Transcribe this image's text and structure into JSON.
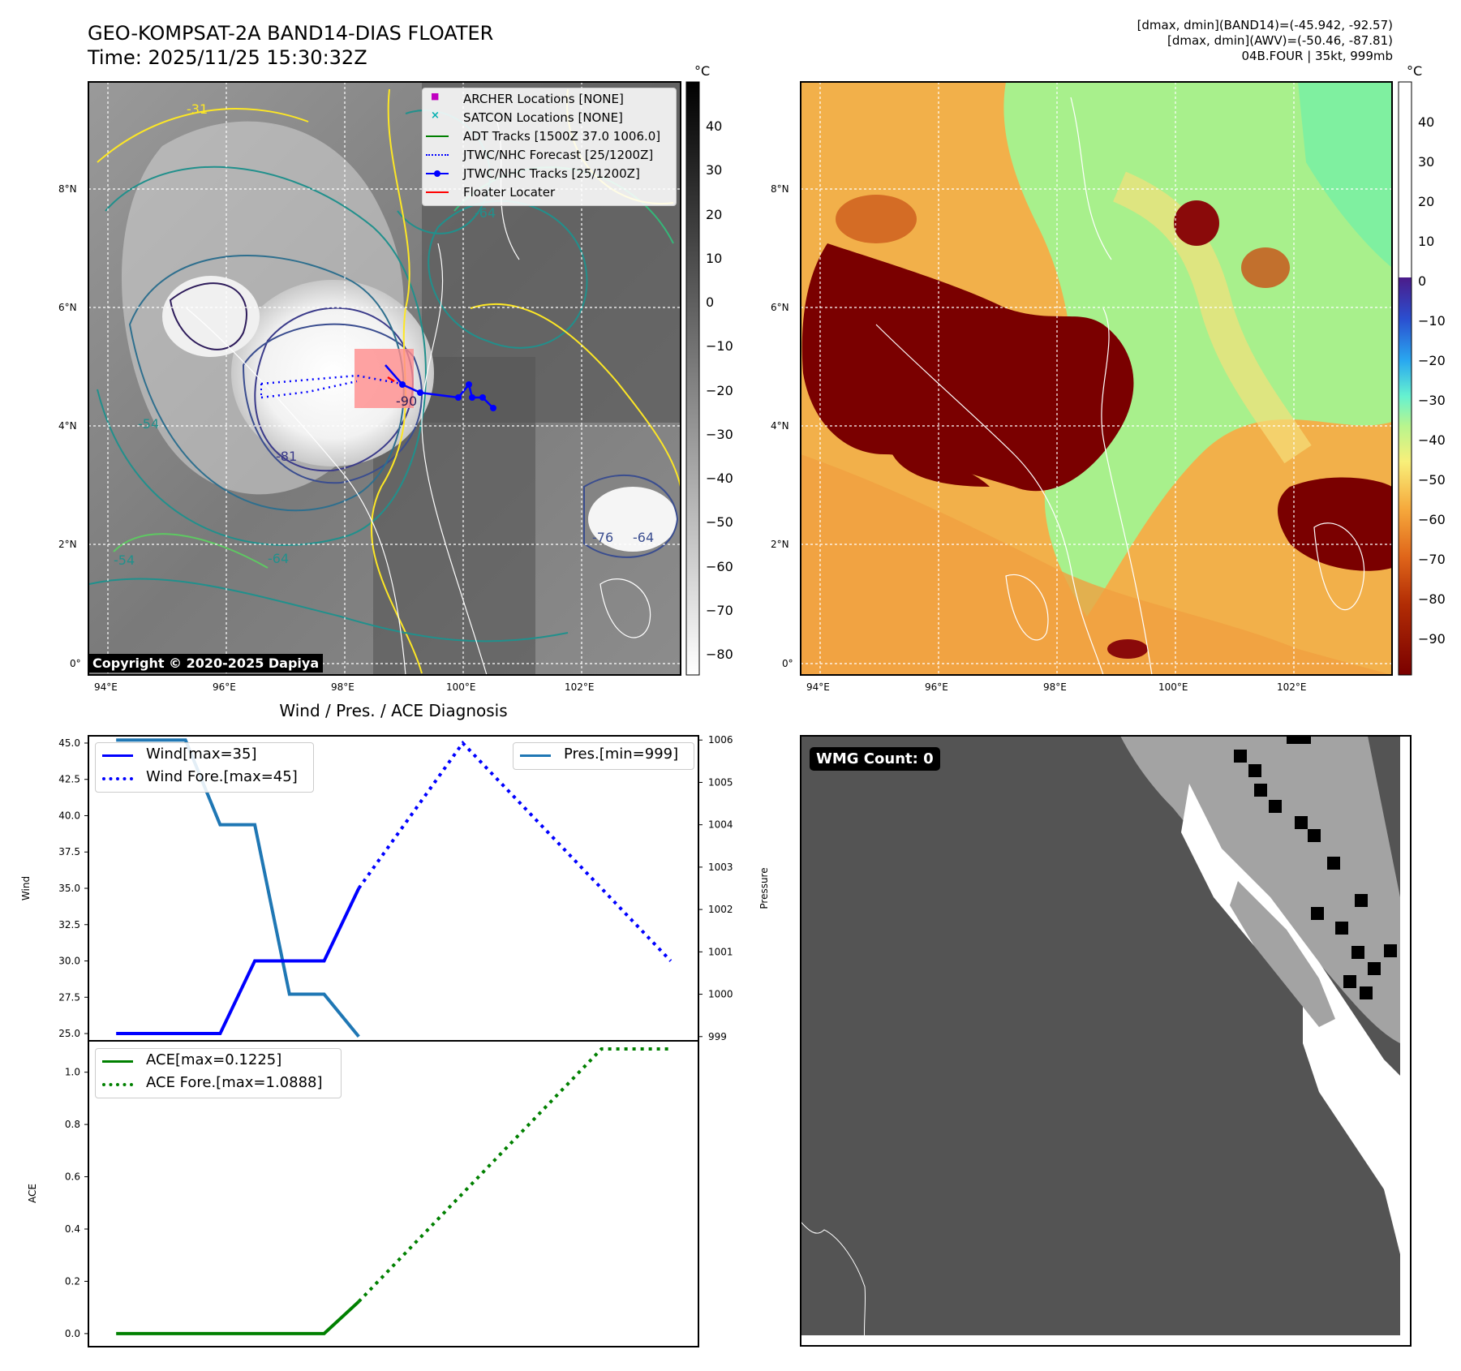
{
  "header": {
    "title_line1": "GEO-KOMPSAT-2A BAND14-DIAS FLOATER",
    "title_line2": "Time: 2025/11/25 15:30:32Z",
    "info_line1": "[dmax, dmin](BAND14)=(-45.942, -92.57)",
    "info_line2": "[dmax, dmin](AWV)=(-50.46, -87.81)",
    "info_line3": "04B.FOUR | 35kt, 999mb"
  },
  "map_ir": {
    "lon_labels": [
      "94°E",
      "96°E",
      "98°E",
      "100°E",
      "102°E"
    ],
    "lat_labels": [
      "8°N",
      "6°N",
      "4°N",
      "2°N",
      "0°"
    ],
    "contour_labels": [
      "-31",
      "-54",
      "-64",
      "-76",
      "-81",
      "-90"
    ],
    "copyright": "Copyright © 2020-2025 Dapiya",
    "colorbar_unit": "°C",
    "colorbar_ticks": [
      "40",
      "30",
      "20",
      "10",
      "0",
      "−10",
      "−20",
      "−30",
      "−40",
      "−50",
      "−60",
      "−70",
      "−80"
    ],
    "legend": [
      {
        "label": "ARCHER Locations [NONE]",
        "color": "#c000c0",
        "marker": "square"
      },
      {
        "label": "SATCON Locations [NONE]",
        "color": "#00b0b0",
        "marker": "x"
      },
      {
        "label": "ADT Tracks [1500Z 37.0 1006.0]",
        "color": "#007f00",
        "marker": "line"
      },
      {
        "label": "JTWC/NHC Forecast [25/1200Z]",
        "color": "#0000ff",
        "marker": "dotted"
      },
      {
        "label": "JTWC/NHC Tracks [25/1200Z]",
        "color": "#0000ff",
        "marker": "line-dot"
      },
      {
        "label": "Floater Locater",
        "color": "#ff0000",
        "marker": "line"
      }
    ]
  },
  "map_wv": {
    "lon_labels": [
      "94°E",
      "96°E",
      "98°E",
      "100°E",
      "102°E"
    ],
    "lat_labels": [
      "8°N",
      "6°N",
      "4°N",
      "2°N",
      "0°"
    ],
    "colorbar_unit": "°C",
    "colorbar_ticks": [
      "40",
      "30",
      "20",
      "10",
      "0",
      "−10",
      "−20",
      "−30",
      "−40",
      "−50",
      "−60",
      "−70",
      "−80",
      "−90"
    ]
  },
  "diagnosis": {
    "title": "Wind / Pres. / ACE Diagnosis",
    "wind_ylabel": "Wind",
    "pres_ylabel": "Pressure",
    "ace_ylabel": "ACE",
    "wind_ticks": [
      "45.0",
      "42.5",
      "40.0",
      "37.5",
      "35.0",
      "32.5",
      "30.0",
      "27.5",
      "25.0"
    ],
    "pres_ticks": [
      "1006",
      "1005",
      "1004",
      "1003",
      "1002",
      "1001",
      "1000",
      "999"
    ],
    "ace_ticks": [
      "1.0",
      "0.8",
      "0.6",
      "0.4",
      "0.2",
      "0.0"
    ],
    "legend_wind": "Wind[max=35]",
    "legend_wind_fore": "Wind Fore.[max=45]",
    "legend_pres": "Pres.[min=999]",
    "legend_ace": "ACE[max=0.1225]",
    "legend_ace_fore": "ACE Fore.[max=1.0888]"
  },
  "wmg": {
    "badge": "WMG Count: 0"
  },
  "chart_data": [
    {
      "type": "line",
      "title": "Wind / Pres. / ACE Diagnosis",
      "ylabel": "Wind",
      "ylim": [
        24.5,
        45.5
      ],
      "x": [
        0,
        1,
        2,
        3,
        4,
        5,
        6,
        7,
        8,
        9,
        10,
        11,
        12,
        13,
        14,
        15,
        16
      ],
      "series": [
        {
          "name": "Wind[max=35]",
          "style": "solid",
          "color": "#0000ff",
          "x": [
            0,
            1,
            2,
            3,
            4,
            5,
            6,
            7
          ],
          "values": [
            25,
            25,
            25,
            25,
            30,
            30,
            30,
            35
          ]
        },
        {
          "name": "Wind Fore.[max=45]",
          "style": "dotted",
          "color": "#0000ff",
          "x": [
            7,
            10,
            16
          ],
          "values": [
            35,
            45,
            30
          ]
        },
        {
          "name": "Pres.[min=999]",
          "style": "solid",
          "color": "#1f77b4",
          "axis": "right",
          "x": [
            0,
            1,
            2,
            3,
            4,
            5,
            6,
            7
          ],
          "values": [
            1006,
            1006,
            1006,
            1004,
            1004,
            1000,
            1000,
            999
          ]
        }
      ],
      "ylim_right": [
        998.9,
        1006.1
      ]
    },
    {
      "type": "line",
      "ylabel": "ACE",
      "ylim": [
        -0.05,
        1.12
      ],
      "series": [
        {
          "name": "ACE[max=0.1225]",
          "style": "solid",
          "color": "#008000",
          "x": [
            0,
            1,
            2,
            3,
            4,
            5,
            6,
            7
          ],
          "values": [
            0,
            0,
            0,
            0,
            0,
            0,
            0,
            0.1225
          ]
        },
        {
          "name": "ACE Fore.[max=1.0888]",
          "style": "dotted",
          "color": "#008000",
          "x": [
            7,
            14,
            16
          ],
          "values": [
            0.1225,
            1.0888,
            1.0888
          ]
        }
      ]
    }
  ]
}
